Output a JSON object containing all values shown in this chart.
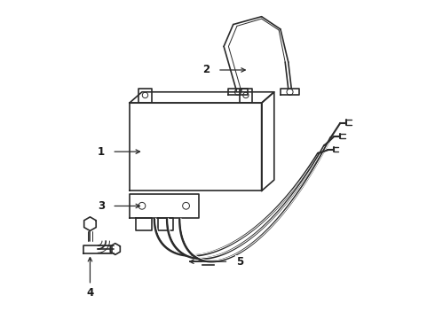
{
  "bg_color": "#ffffff",
  "line_color": "#2a2a2a",
  "label_color": "#1a1a1a",
  "lw_main": 1.2,
  "lw_thin": 0.7,
  "lw_hose": 2.0
}
